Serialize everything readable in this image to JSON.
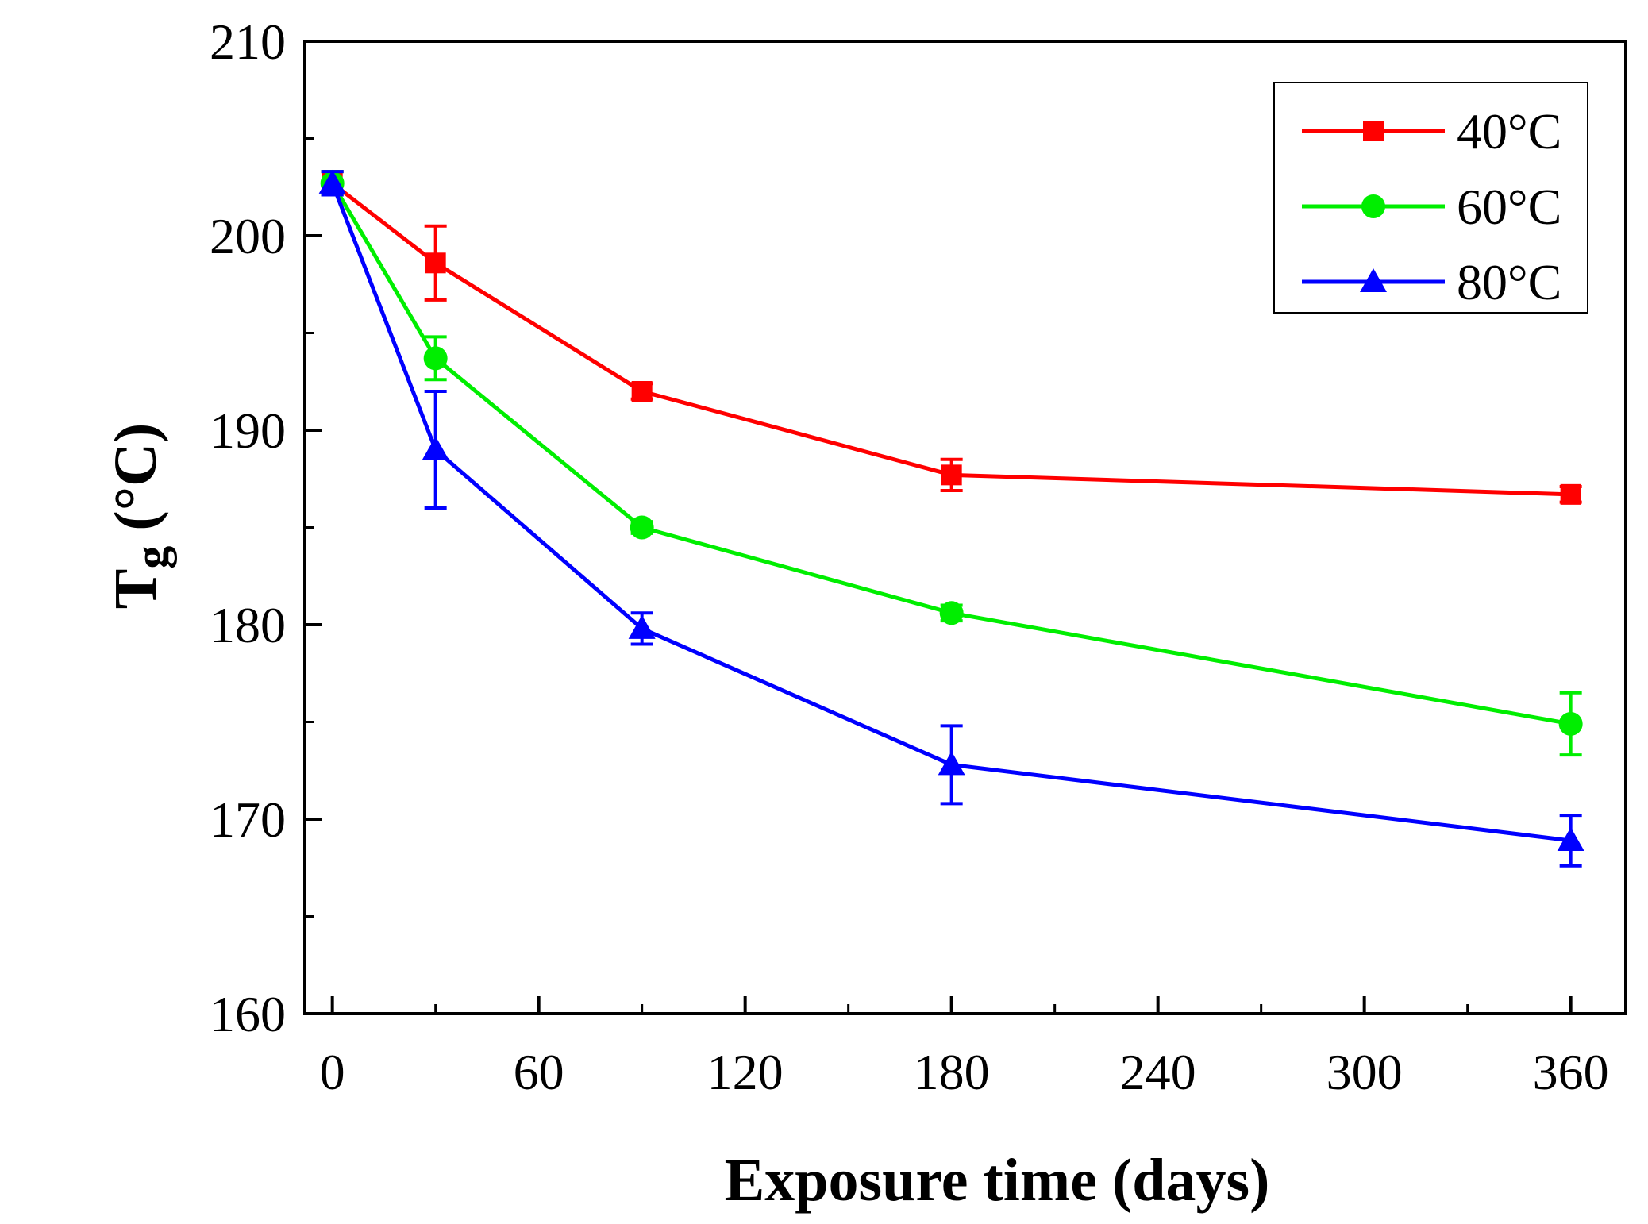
{
  "chart_data": {
    "type": "line",
    "title": "",
    "xlabel": "Exposure time (days)",
    "ylabel_main": "T",
    "ylabel_sub": "g",
    "ylabel_unit": " (°C)",
    "xlim": [
      -8,
      376
    ],
    "ylim": [
      160,
      210
    ],
    "x_ticks": [
      0,
      60,
      120,
      180,
      240,
      300,
      360
    ],
    "y_ticks": [
      160,
      170,
      180,
      190,
      200,
      210
    ],
    "x_minor_step": 30,
    "y_minor_step": 5,
    "x": [
      0,
      30,
      90,
      180,
      360
    ],
    "grid": false,
    "legend_position": "top-right",
    "series": [
      {
        "name": "40°C",
        "color": "#ff0000",
        "marker": "square",
        "values": [
          202.7,
          198.6,
          192.0,
          187.7,
          186.7
        ],
        "errors": [
          0.6,
          1.9,
          0.4,
          0.8,
          0.4
        ]
      },
      {
        "name": "60°C",
        "color": "#00ee00",
        "marker": "circle",
        "values": [
          202.7,
          193.7,
          185.0,
          180.6,
          174.9
        ],
        "errors": [
          0.6,
          1.1,
          0.3,
          0.4,
          1.6
        ]
      },
      {
        "name": "80°C",
        "color": "#0000ff",
        "marker": "triangle",
        "values": [
          202.7,
          189.0,
          179.8,
          172.8,
          168.9
        ],
        "errors": [
          0.6,
          3.0,
          0.8,
          2.0,
          1.3
        ]
      }
    ]
  }
}
